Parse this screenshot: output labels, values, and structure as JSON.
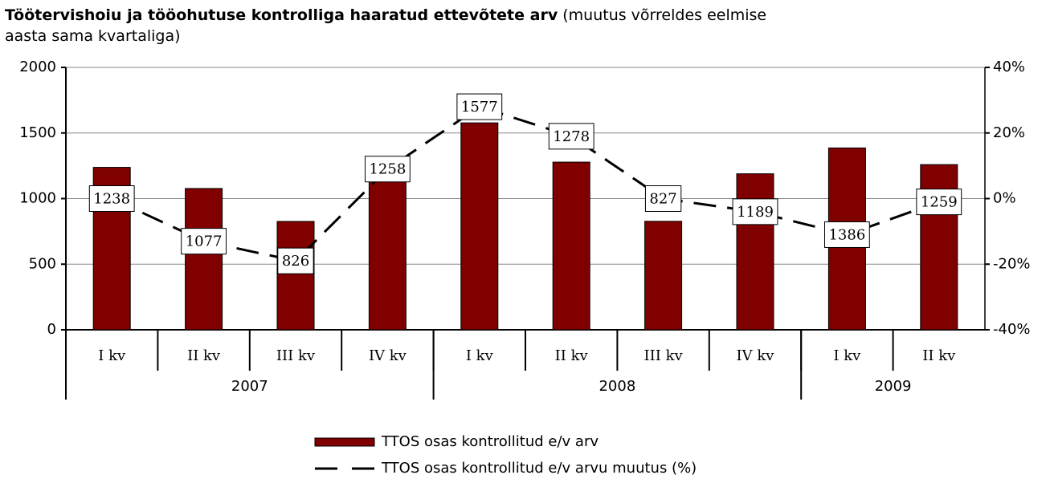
{
  "chart_data": {
    "type": "combo",
    "title": "Töötervishoiu ja tööohutuse kontrolliga haaratud ettevõtete arv",
    "subtitle": "(muutus võrreldes eelmise aasta sama kvartaliga)",
    "categories": [
      "I kv",
      "II kv",
      "III kv",
      "IV kv",
      "I kv",
      "II kv",
      "III kv",
      "IV kv",
      "I kv",
      "II kv"
    ],
    "groups": [
      {
        "name": "2007",
        "count": 4
      },
      {
        "name": "2008",
        "count": 4
      },
      {
        "name": "2009",
        "count": 2
      }
    ],
    "series": [
      {
        "name": "TTOS osas kontrollitud e/v arv",
        "type": "bar",
        "color": "#800000",
        "values": [
          1238,
          1077,
          826,
          1258,
          1577,
          1278,
          827,
          1189,
          1386,
          1259
        ]
      },
      {
        "name": "TTOS osas kontrollitud e/v arvu muutus (%)",
        "type": "line",
        "color": "#000000",
        "axis": "y2",
        "dashed": true,
        "values": [
          0,
          -13,
          -19,
          9,
          28,
          19,
          0,
          -4,
          -11,
          -1
        ]
      }
    ],
    "ylim": [
      0,
      2000
    ],
    "yticks": [
      0,
      500,
      1000,
      1500,
      2000
    ],
    "y2lim": [
      -40,
      40
    ],
    "y2ticks": [
      {
        "value": -40,
        "label": "-40%"
      },
      {
        "value": -20,
        "label": "-20%"
      },
      {
        "value": 0,
        "label": "0%"
      },
      {
        "value": 20,
        "label": "20%"
      },
      {
        "value": 40,
        "label": "40%"
      }
    ],
    "grid": true,
    "legend": "bottom"
  }
}
